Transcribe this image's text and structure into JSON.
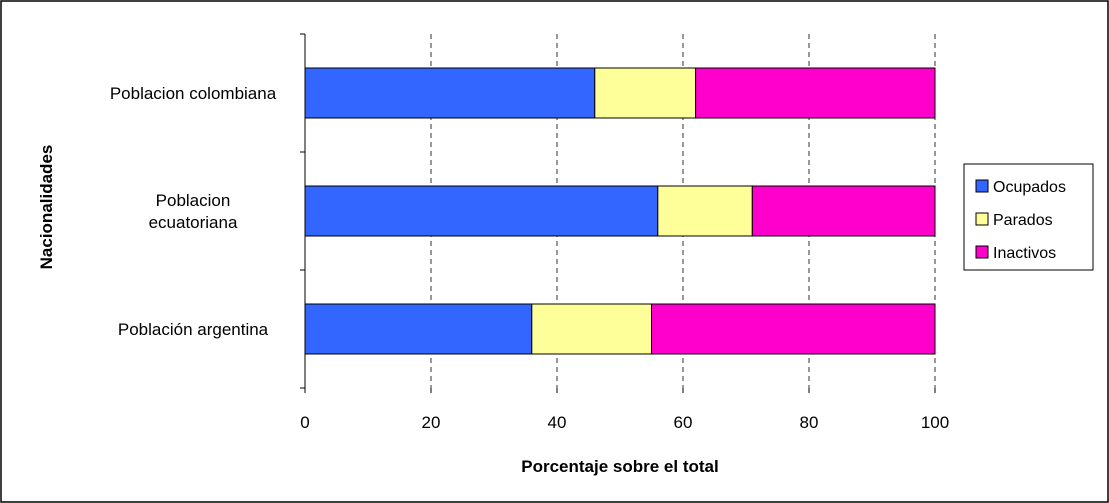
{
  "chart_data": {
    "type": "bar",
    "orientation": "horizontal",
    "stacked": true,
    "categories": [
      "Poblacion colombiana",
      "Poblacion ecuatoriana",
      "Población argentina"
    ],
    "category_lines": [
      [
        "Poblacion colombiana"
      ],
      [
        "Poblacion",
        "ecuatoriana"
      ],
      [
        "Población argentina"
      ]
    ],
    "series": [
      {
        "name": "Ocupados",
        "color": "#3366ff",
        "values": [
          46,
          56,
          36
        ]
      },
      {
        "name": "Parados",
        "color": "#ffff99",
        "values": [
          16,
          15,
          19
        ]
      },
      {
        "name": "Inactivos",
        "color": "#ff00cc",
        "values": [
          38,
          29,
          45
        ]
      }
    ],
    "xlabel": "Porcentaje sobre el total",
    "ylabel": "Nacionalidades",
    "xlim": [
      0,
      100
    ],
    "xticks": [
      0,
      20,
      40,
      60,
      80,
      100
    ],
    "grid": "vertical-dashed",
    "legend": "right"
  }
}
